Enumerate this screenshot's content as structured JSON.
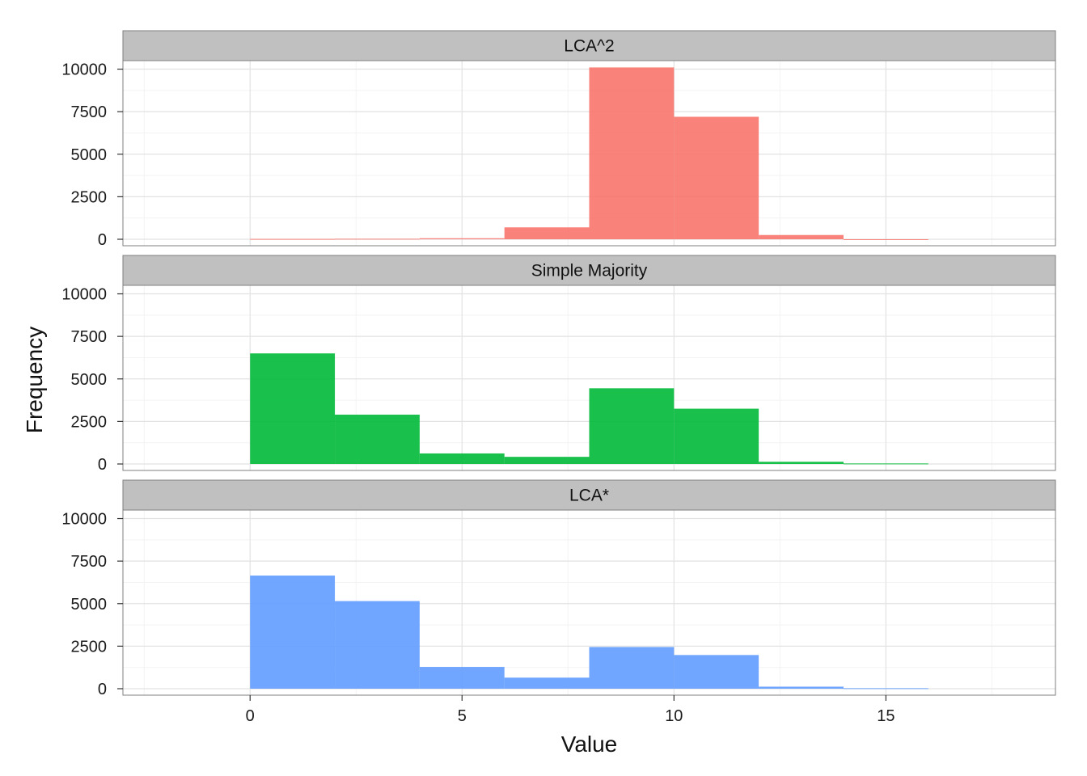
{
  "chart_data": {
    "type": "bar",
    "xlabel": "Value",
    "ylabel": "Frequency",
    "xlim": [
      -3,
      19
    ],
    "ylim": [
      0,
      10500
    ],
    "x_ticks": [
      0,
      5,
      10,
      15
    ],
    "y_ticks": [
      0,
      2500,
      5000,
      7500,
      10000
    ],
    "bin_edges": [
      0,
      2,
      4,
      6,
      8,
      10,
      12,
      14,
      16
    ],
    "grid": true,
    "legend": "none",
    "facets": [
      {
        "name": "LCA^2",
        "color": "#f8766d",
        "values": [
          20,
          30,
          60,
          700,
          10100,
          7200,
          250,
          0
        ]
      },
      {
        "name": "Simple Majority",
        "color": "#00ba38",
        "values": [
          6500,
          2900,
          620,
          420,
          4450,
          3250,
          130,
          30
        ]
      },
      {
        "name": "LCA*",
        "color": "#619cff",
        "values": [
          6650,
          5150,
          1280,
          650,
          2450,
          1980,
          120,
          30
        ]
      }
    ]
  }
}
